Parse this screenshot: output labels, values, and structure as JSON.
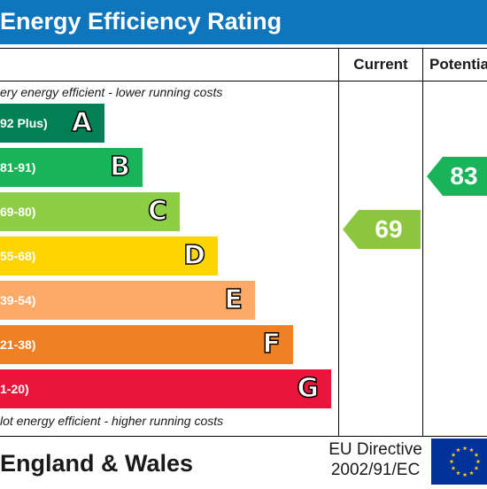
{
  "header": {
    "title": "Energy Efficiency Rating"
  },
  "columns": {
    "current": "Current",
    "potential": "Potentia"
  },
  "notes": {
    "top": "ery energy efficient - lower running costs",
    "bottom": "lot energy efficient - higher running costs"
  },
  "chart_data": {
    "type": "bar",
    "title": "Energy Efficiency Rating",
    "categories": [
      "A",
      "B",
      "C",
      "D",
      "E",
      "F",
      "G"
    ],
    "bands": [
      {
        "letter": "A",
        "range": "92 Plus)",
        "color": "#008054"
      },
      {
        "letter": "B",
        "range": "81-91)",
        "color": "#19b459"
      },
      {
        "letter": "C",
        "range": "69-80)",
        "color": "#8dce46"
      },
      {
        "letter": "D",
        "range": "55-68)",
        "color": "#ffd500"
      },
      {
        "letter": "E",
        "range": "39-54)",
        "color": "#fcaa65"
      },
      {
        "letter": "F",
        "range": "21-38)",
        "color": "#ef8023"
      },
      {
        "letter": "G",
        "range": "1-20)",
        "color": "#e9153b"
      }
    ],
    "current": {
      "value": "69",
      "band": "C",
      "color": "#8cc63e"
    },
    "potential": {
      "value": "83",
      "band": "B",
      "color": "#19b459"
    }
  },
  "footer": {
    "country": "England & Wales",
    "directive_line1": "EU Directive",
    "directive_line2": "2002/91/EC",
    "flag_color": "#003399",
    "star_color": "#ffcc00"
  }
}
